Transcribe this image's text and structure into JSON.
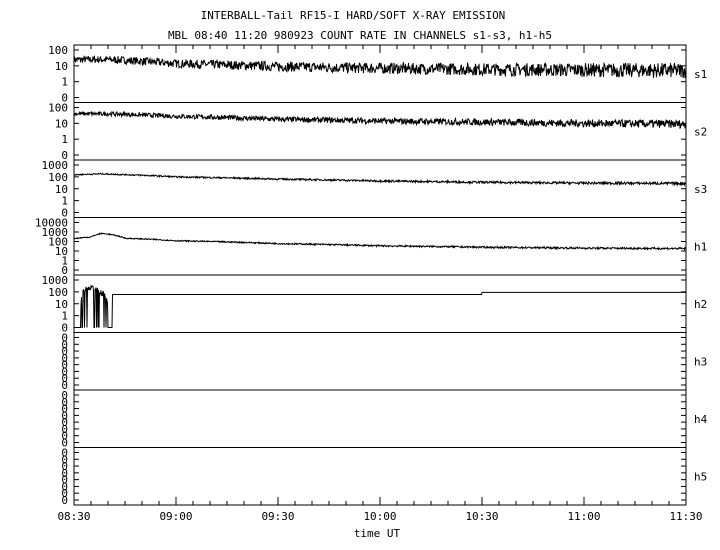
{
  "chart_data": {
    "type": "line",
    "title": "INTERBALL-Tail RF15-I HARD/SOFT X-RAY EMISSION",
    "subtitle": "MBL 08:40 11:20 980923  COUNT RATE IN CHANNELS s1-s3, h1-h5",
    "xlabel": "time UT",
    "x_ticks": [
      "08:30",
      "09:00",
      "09:30",
      "10:00",
      "10:30",
      "11:00",
      "11:30"
    ],
    "xlim": [
      "08:30",
      "11:30"
    ],
    "panels": [
      {
        "channel": "s1",
        "y_ticks": [
          "100",
          "10",
          "1",
          "0"
        ],
        "x": [
          "08:30",
          "08:40",
          "09:00",
          "09:30",
          "10:00",
          "10:30",
          "11:00",
          "11:30"
        ],
        "values": [
          25,
          25,
          14,
          9,
          7,
          6,
          5.5,
          5
        ]
      },
      {
        "channel": "s2",
        "y_ticks": [
          "100",
          "10",
          "1",
          "0"
        ],
        "x": [
          "08:30",
          "08:40",
          "09:00",
          "09:30",
          "10:00",
          "10:30",
          "11:00",
          "11:30"
        ],
        "values": [
          40,
          40,
          28,
          18,
          14,
          12,
          10,
          9
        ]
      },
      {
        "channel": "s3",
        "y_ticks": [
          "1000",
          "100",
          "10",
          "1",
          "0"
        ],
        "x": [
          "08:30",
          "08:38",
          "09:00",
          "09:30",
          "10:00",
          "10:30",
          "11:00",
          "11:30"
        ],
        "values": [
          150,
          180,
          100,
          65,
          45,
          35,
          30,
          28
        ]
      },
      {
        "channel": "h1",
        "y_ticks": [
          "10000",
          "1000",
          "100",
          "10",
          "1",
          "0"
        ],
        "x": [
          "08:30",
          "08:35",
          "08:38",
          "08:40",
          "08:45",
          "09:00",
          "09:30",
          "10:00",
          "10:30",
          "11:00",
          "11:30"
        ],
        "values": [
          200,
          300,
          700,
          600,
          220,
          120,
          60,
          35,
          25,
          20,
          18
        ]
      },
      {
        "channel": "h2",
        "y_ticks": [
          "1000",
          "100",
          "10",
          "1",
          "0"
        ],
        "x": [
          "08:30",
          "08:32",
          "08:33",
          "08:35",
          "08:38",
          "08:40",
          "08:41",
          "10:29",
          "10:30",
          "11:30"
        ],
        "values": [
          0,
          0,
          150,
          250,
          120,
          0,
          60,
          60,
          90,
          90
        ]
      },
      {
        "channel": "h3",
        "y_ticks": [
          "0",
          "0",
          "0",
          "0",
          "0",
          "0",
          "0",
          "0"
        ],
        "x": [],
        "values": []
      },
      {
        "channel": "h4",
        "y_ticks": [
          "0",
          "0",
          "0",
          "0",
          "0",
          "0",
          "0",
          "0"
        ],
        "x": [],
        "values": []
      },
      {
        "channel": "h5",
        "y_ticks": [
          "0",
          "0",
          "0",
          "0",
          "0",
          "0",
          "0",
          "0"
        ],
        "x": [],
        "values": []
      }
    ]
  }
}
